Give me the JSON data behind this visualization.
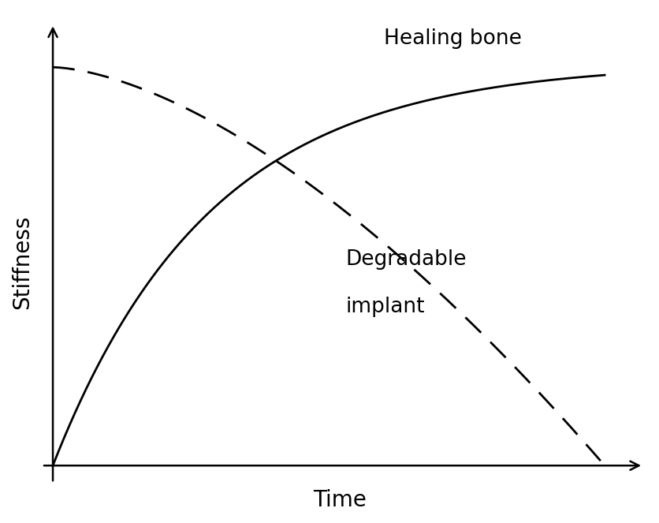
{
  "title": "",
  "xlabel": "Time",
  "ylabel": "Stiffness",
  "xlabel_fontsize": 20,
  "ylabel_fontsize": 20,
  "label_healing": "Healing bone",
  "label_degradable_line1": "Degradable",
  "label_degradable_line2": "implant",
  "label_fontsize": 19,
  "line_color": "#000000",
  "line_width": 2.0,
  "background_color": "#ffffff",
  "dash_pattern": [
    10,
    6
  ]
}
